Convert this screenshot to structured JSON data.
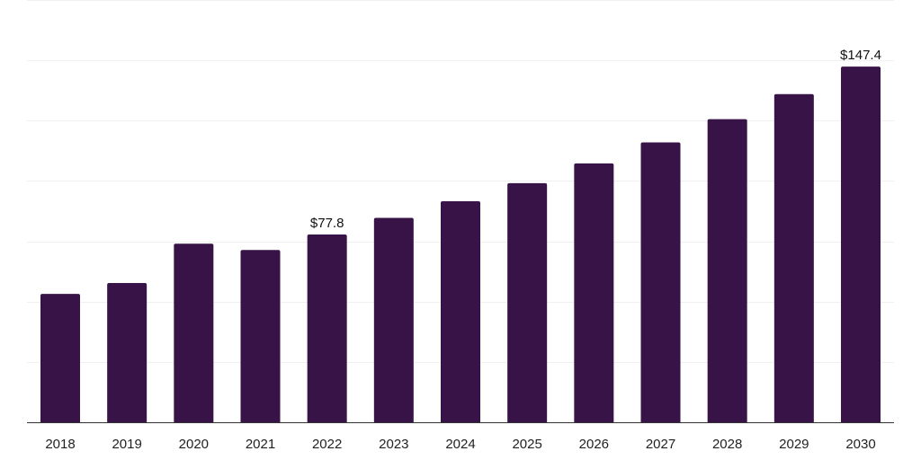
{
  "chart_data": {
    "type": "bar",
    "categories": [
      "2018",
      "2019",
      "2020",
      "2021",
      "2022",
      "2023",
      "2024",
      "2025",
      "2026",
      "2027",
      "2028",
      "2029",
      "2030"
    ],
    "values": [
      53.2,
      57.7,
      74.0,
      71.4,
      77.8,
      84.7,
      91.6,
      99.1,
      107.3,
      116.0,
      125.6,
      136.0,
      147.4
    ],
    "data_labels": [
      {
        "index": 4,
        "text": "$77.8"
      },
      {
        "index": 12,
        "text": "$147.4"
      }
    ],
    "ylim": [
      0,
      175
    ],
    "grid_step": 25,
    "grid": true,
    "title": "",
    "xlabel": "",
    "ylabel": "",
    "bar_color": "#371347",
    "legend": "none"
  }
}
